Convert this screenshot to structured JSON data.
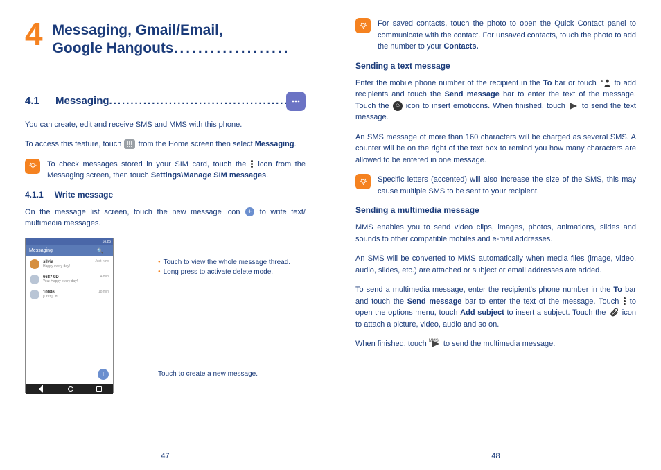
{
  "colors": {
    "text_blue": "#1b3b7a",
    "accent_orange": "#f58220",
    "phone_bar": "#5a7ab6",
    "icon_purple": "#6b73c4"
  },
  "left": {
    "chapter_num": "4",
    "chapter_title_l1": "Messaging, Gmail/Email,",
    "chapter_title_l2": "Google Hangouts",
    "chapter_dots": "...................",
    "s41_num": "4.1",
    "s41_title": "Messaging",
    "s41_dots": "..................................................",
    "intro": "You can create, edit and receive SMS and MMS with this phone.",
    "access_pre": "To access this feature, touch",
    "access_post": "from the Home screen then select",
    "access_bold": "Messaging",
    "tip1_pre": "To check messages stored in your SIM card, touch the",
    "tip1_mid": "icon from the Messaging screen, then touch",
    "tip1_bold": "Settings\\Manage SIM messages",
    "s411_num": "4.1.1",
    "s411_title": "Write message",
    "write_pre": "On the message list screen, touch the new message icon",
    "write_post": "to write text/ multimedia messages.",
    "callout1a": "Touch to view the whole message thread.",
    "callout1b": "Long press to activate delete mode.",
    "callout2": "Touch to create a new message.",
    "phone": {
      "status_right": "16:25",
      "appbar_title": "Messaging",
      "items": [
        {
          "name": "silvia",
          "sub": "Happy every day!",
          "time": "Just now",
          "color": "#d68f3f"
        },
        {
          "name": "6687 9D",
          "sub": "You: Happy every day!",
          "time": "4 min",
          "color": "#b9c5d5"
        },
        {
          "name": "10086",
          "sub": "[Draft] ..d",
          "time": "18 min",
          "color": "#b9c5d5"
        }
      ]
    },
    "page_num": "47"
  },
  "right": {
    "tip_saved_pre": "For saved contacts, touch the photo to open the Quick Contact panel to communicate with the contact. For unsaved contacts, touch the photo to add the number to your",
    "tip_saved_bold": "Contacts.",
    "h_text": "Sending a text message",
    "text_p1_pre": "Enter the mobile phone number of the recipient in the",
    "to": "To",
    "text_p1_mid": "bar or touch",
    "text_p1_mid2": "to add recipients and touch the",
    "send_msg": "Send message",
    "text_p1_mid3": "bar to enter the text of the message. Touch the",
    "text_p1_mid4": "icon to insert emoticons. When finished, touch",
    "text_p1_end": "to send the text message.",
    "sms160": "An SMS message of more than 160 characters will be charged as several SMS. A counter will be on the right of the text box to remind you how many characters are allowed to be entered in one message.",
    "tip_accent": "Specific letters (accented) will also increase the size of the SMS, this may cause multiple SMS to be sent to your recipient.",
    "h_mms": "Sending a multimedia message",
    "mms_p1": "MMS enables you to send video clips, images, photos, animations, slides and sounds to other compatible mobiles and e-mail addresses.",
    "mms_p2": "An SMS will be converted to MMS automatically when media files (image, video, audio, slides, etc.) are attached or subject or email addresses are added.",
    "mms_p3_pre": "To send a multimedia message, enter the recipient's phone number in the",
    "mms_p3_mid1": "bar and touch the",
    "mms_p3_mid2": "bar to enter the text of the message. Touch",
    "mms_p3_mid3": "to open the options menu, touch",
    "add_subject": "Add subject",
    "mms_p3_mid4": "to insert a subject. Touch the",
    "mms_p3_end": "icon to attach a picture, video, audio and so on.",
    "mms_finish_pre": "When finished, touch",
    "mms_finish_end": "to send the multimedia message.",
    "mms_label": "MMS",
    "page_num": "48"
  }
}
